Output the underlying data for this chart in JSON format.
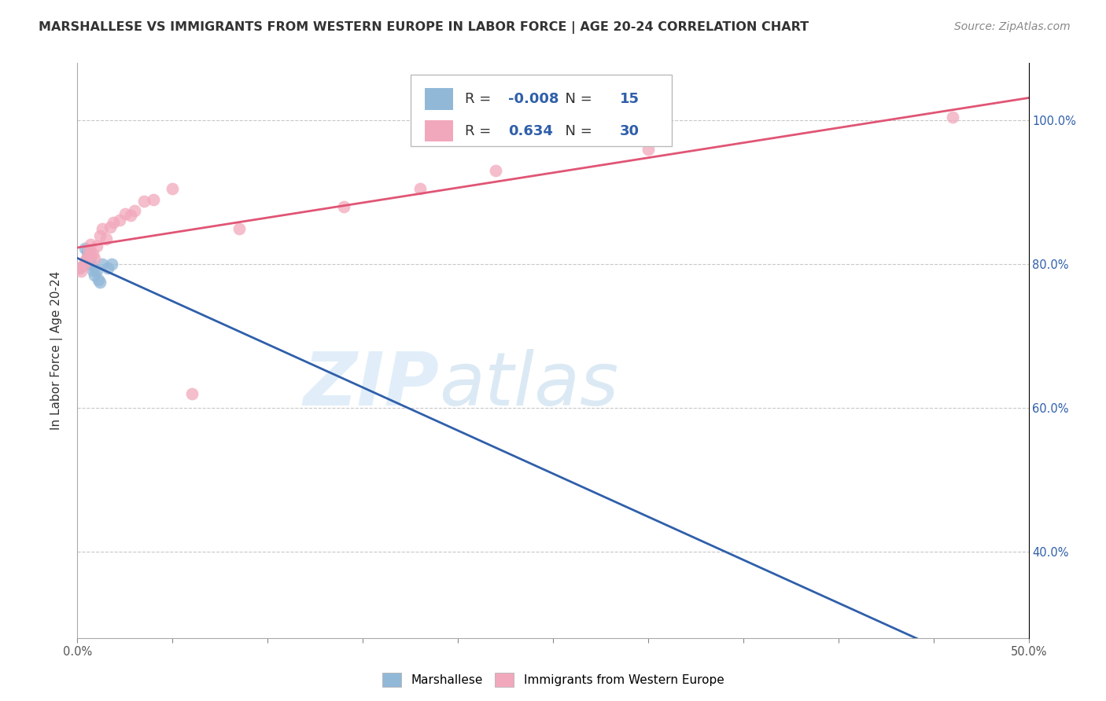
{
  "title": "MARSHALLESE VS IMMIGRANTS FROM WESTERN EUROPE IN LABOR FORCE | AGE 20-24 CORRELATION CHART",
  "source": "Source: ZipAtlas.com",
  "ylabel": "In Labor Force | Age 20-24",
  "xlim": [
    0.0,
    0.5
  ],
  "ylim": [
    0.28,
    1.08
  ],
  "xticks": [
    0.0,
    0.05,
    0.1,
    0.15,
    0.2,
    0.25,
    0.3,
    0.35,
    0.4,
    0.45,
    0.5
  ],
  "xticklabels": [
    "0.0%",
    "",
    "",
    "",
    "",
    "",
    "",
    "",
    "",
    "",
    "50.0%"
  ],
  "yticks": [
    0.4,
    0.6,
    0.8,
    1.0
  ],
  "yticklabels": [
    "40.0%",
    "60.0%",
    "80.0%",
    "100.0%"
  ],
  "blue_color": "#92b8d8",
  "pink_color": "#f2a8bc",
  "blue_line_color": "#2f5faa",
  "pink_line_color": "#e05575",
  "watermark_color": "#cde4f5",
  "R_blue": -0.008,
  "N_blue": 15,
  "R_pink": 0.634,
  "N_pink": 30,
  "blue_points_x": [
    0.001,
    0.004,
    0.005,
    0.005,
    0.006,
    0.007,
    0.007,
    0.008,
    0.009,
    0.01,
    0.011,
    0.012,
    0.013,
    0.016,
    0.018
  ],
  "blue_points_y": [
    0.795,
    0.822,
    0.818,
    0.81,
    0.8,
    0.808,
    0.8,
    0.792,
    0.785,
    0.792,
    0.778,
    0.775,
    0.8,
    0.795,
    0.8
  ],
  "pink_points_x": [
    0.001,
    0.002,
    0.003,
    0.004,
    0.005,
    0.006,
    0.007,
    0.007,
    0.008,
    0.009,
    0.01,
    0.012,
    0.013,
    0.015,
    0.017,
    0.019,
    0.022,
    0.025,
    0.028,
    0.03,
    0.035,
    0.04,
    0.05,
    0.06,
    0.085,
    0.14,
    0.18,
    0.22,
    0.3,
    0.46
  ],
  "pink_points_y": [
    0.795,
    0.79,
    0.798,
    0.805,
    0.81,
    0.82,
    0.815,
    0.828,
    0.815,
    0.808,
    0.825,
    0.84,
    0.85,
    0.835,
    0.852,
    0.858,
    0.862,
    0.87,
    0.868,
    0.875,
    0.888,
    0.89,
    0.905,
    0.62,
    0.85,
    0.88,
    0.905,
    0.93,
    0.96,
    1.005
  ],
  "grid_color": "#c8c8c8",
  "background_color": "#ffffff",
  "title_fontsize": 11.5,
  "source_fontsize": 10,
  "axis_label_fontsize": 11,
  "tick_fontsize": 10.5,
  "legend_fontsize": 13
}
